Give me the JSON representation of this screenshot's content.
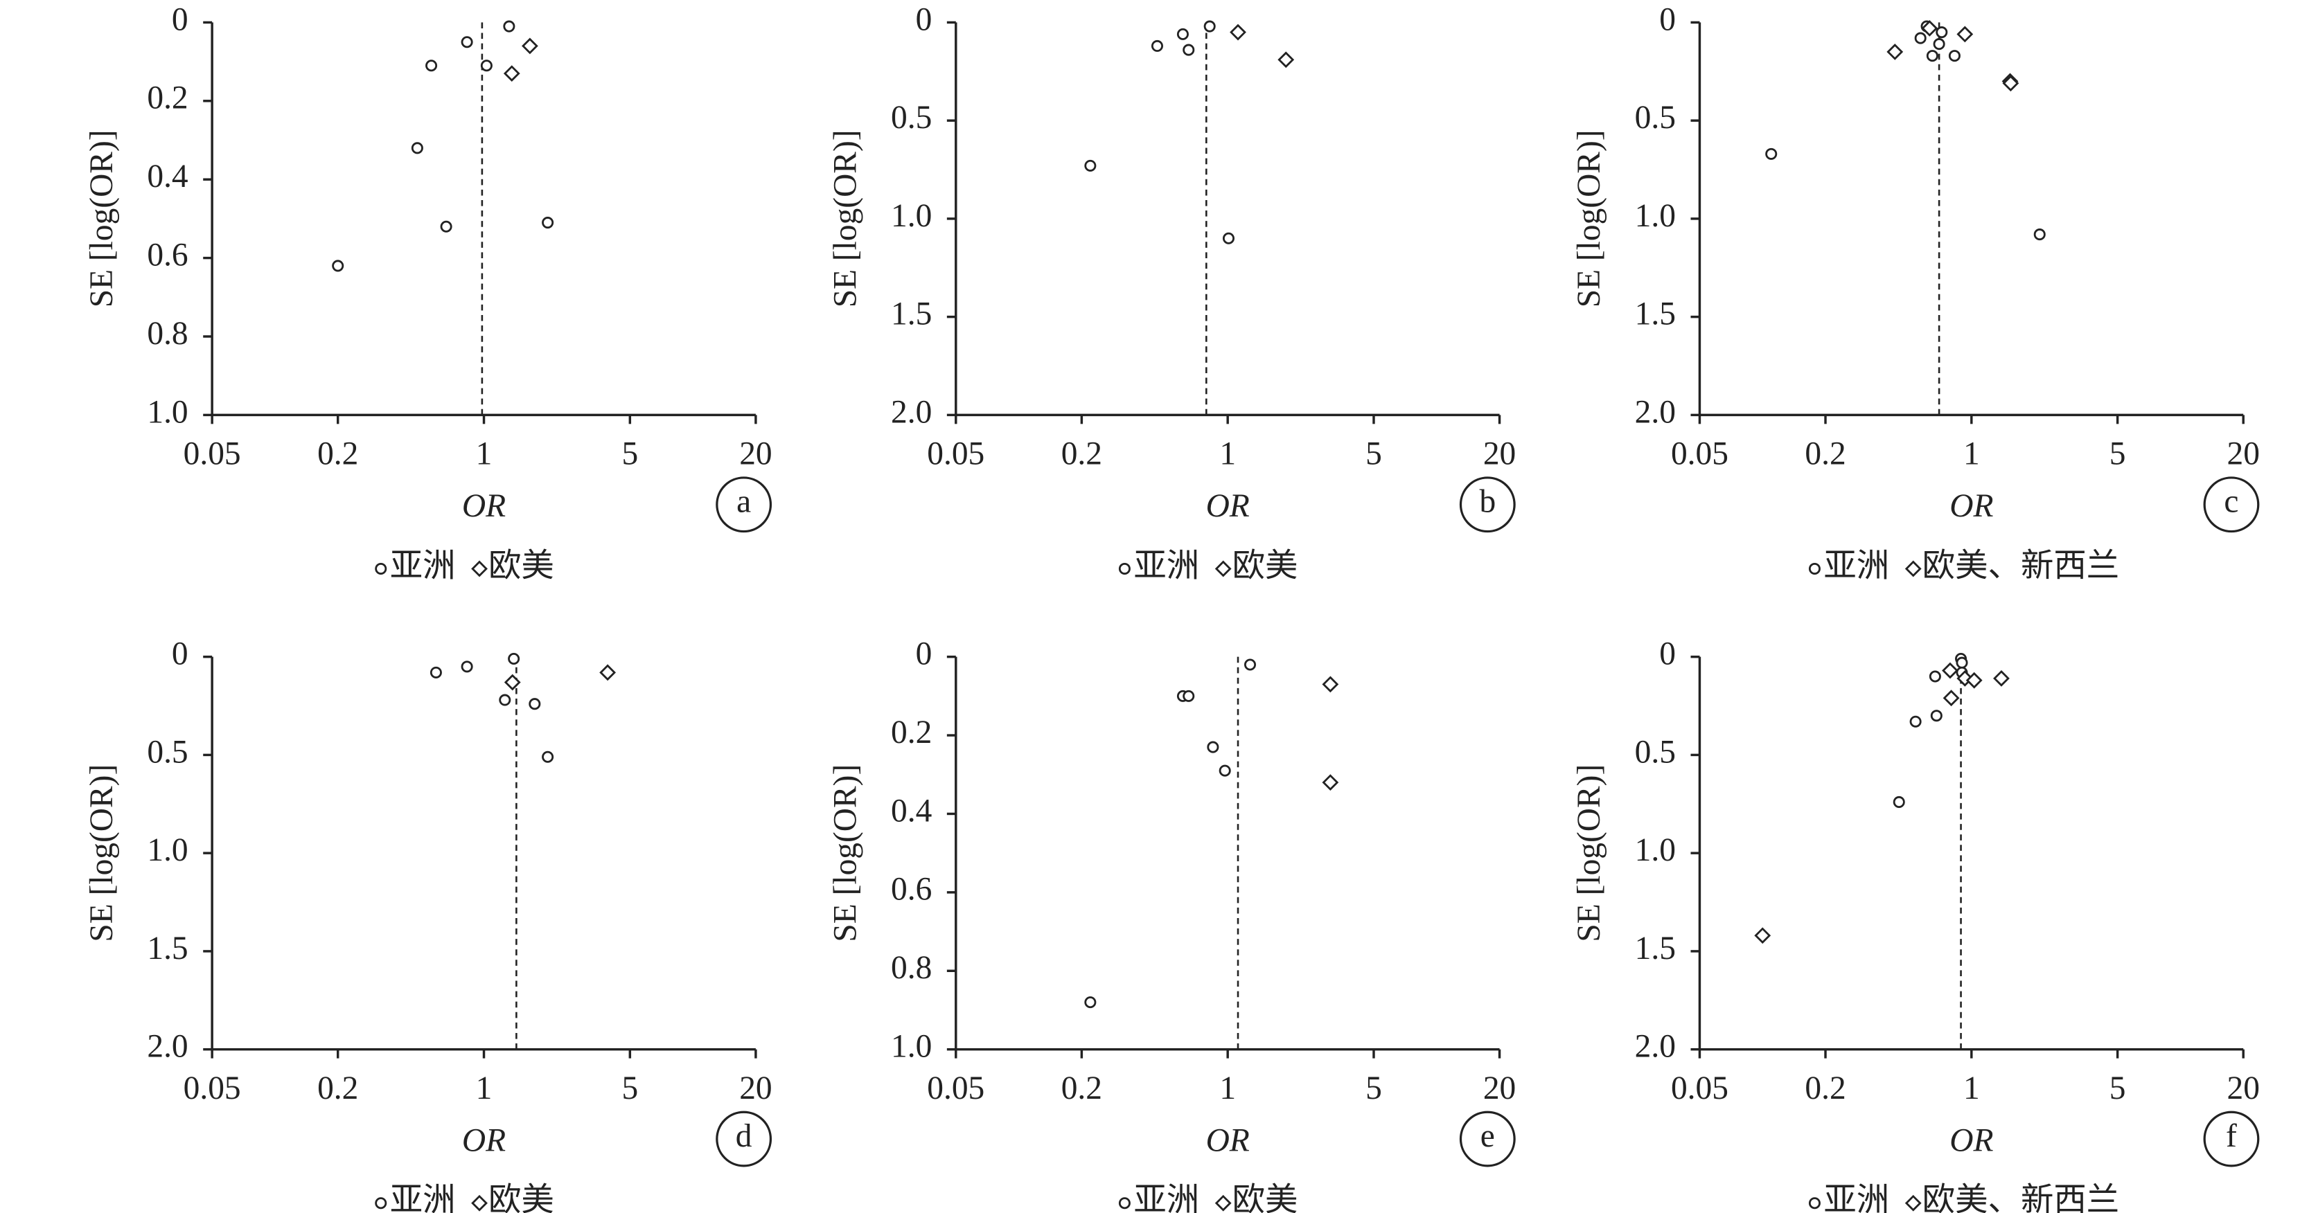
{
  "chart_data": [
    {
      "type": "scatter",
      "panel_label": "a",
      "x_label": "OR",
      "y_label": "SE [log(OR)]",
      "x_scale": "log",
      "y_reversed": true,
      "xlim": [
        0.05,
        20
      ],
      "xticks": [
        0.05,
        0.2,
        1,
        5,
        20
      ],
      "ylim": [
        0,
        1
      ],
      "yticks": [
        0,
        0.2,
        0.4,
        0.6,
        0.8,
        {
          "value": 1,
          "label": "1.0"
        }
      ],
      "summary_or": 0.98,
      "color": "#222222",
      "series": [
        {
          "name": "亚洲",
          "marker": "circle",
          "x": [
            0.83,
            1.32,
            0.56,
            1.03,
            0.48,
            0.66,
            2.02,
            0.2
          ],
          "values": [
            0.05,
            0.01,
            0.11,
            0.11,
            0.32,
            0.52,
            0.51,
            0.62
          ]
        },
        {
          "name": "欧美",
          "marker": "diamond",
          "x": [
            1.66,
            1.36
          ],
          "values": [
            0.06,
            0.13
          ]
        }
      ]
    },
    {
      "type": "scatter",
      "panel_label": "b",
      "x_label": "OR",
      "y_label": "SE [log(OR)]",
      "x_scale": "log",
      "y_reversed": true,
      "xlim": [
        0.05,
        20
      ],
      "xticks": [
        0.05,
        0.2,
        1,
        5,
        20
      ],
      "ylim": [
        0,
        2
      ],
      "yticks": [
        0,
        0.5,
        {
          "value": 1,
          "label": "1.0"
        },
        1.5,
        {
          "value": 2,
          "label": "2.0"
        }
      ],
      "summary_or": 0.79,
      "color": "#222222",
      "series": [
        {
          "name": "亚洲",
          "marker": "circle",
          "x": [
            0.82,
            0.61,
            0.65,
            0.46,
            0.22,
            1.01
          ],
          "values": [
            0.02,
            0.06,
            0.14,
            0.12,
            0.73,
            1.1
          ]
        },
        {
          "name": "欧美",
          "marker": "diamond",
          "x": [
            1.12,
            1.9
          ],
          "values": [
            0.05,
            0.19
          ]
        }
      ]
    },
    {
      "type": "scatter",
      "panel_label": "c",
      "x_label": "OR",
      "y_label": "SE [log(OR)]",
      "x_scale": "log",
      "y_reversed": true,
      "xlim": [
        0.05,
        20
      ],
      "xticks": [
        0.05,
        0.2,
        1,
        5,
        20
      ],
      "ylim": [
        0,
        2
      ],
      "yticks": [
        0,
        0.5,
        {
          "value": 1,
          "label": "1.0"
        },
        1.5,
        {
          "value": 2,
          "label": "2.0"
        }
      ],
      "summary_or": 0.7,
      "color": "#222222",
      "series": [
        {
          "name": "亚洲",
          "marker": "circle",
          "x": [
            0.61,
            0.57,
            0.72,
            0.7,
            0.65,
            0.83,
            0.11,
            2.12
          ],
          "values": [
            0.02,
            0.08,
            0.05,
            0.11,
            0.17,
            0.17,
            0.67,
            1.08
          ]
        },
        {
          "name": "欧美、新西兰",
          "marker": "diamond",
          "x": [
            0.63,
            0.93,
            0.43,
            1.53,
            1.54
          ],
          "values": [
            0.03,
            0.06,
            0.15,
            0.3,
            0.31
          ]
        }
      ]
    },
    {
      "type": "scatter",
      "panel_label": "d",
      "x_label": "OR",
      "y_label": "SE [log(OR)]",
      "x_scale": "log",
      "y_reversed": true,
      "xlim": [
        0.05,
        20
      ],
      "xticks": [
        0.05,
        0.2,
        1,
        5,
        20
      ],
      "ylim": [
        0,
        2
      ],
      "yticks": [
        0,
        0.5,
        {
          "value": 1,
          "label": "1.0"
        },
        1.5,
        {
          "value": 2,
          "label": "2.0"
        }
      ],
      "summary_or": 1.43,
      "color": "#222222",
      "series": [
        {
          "name": "亚洲",
          "marker": "circle",
          "x": [
            0.59,
            0.83,
            1.39,
            1.26,
            1.75,
            2.02
          ],
          "values": [
            0.08,
            0.05,
            0.01,
            0.22,
            0.24,
            0.51
          ]
        },
        {
          "name": "欧美",
          "marker": "diamond",
          "x": [
            1.37,
            3.91
          ],
          "values": [
            0.13,
            0.08
          ]
        }
      ]
    },
    {
      "type": "scatter",
      "panel_label": "e",
      "x_label": "OR",
      "y_label": "SE [log(OR)]",
      "x_scale": "log",
      "y_reversed": true,
      "xlim": [
        0.05,
        20
      ],
      "xticks": [
        0.05,
        0.2,
        1,
        5,
        20
      ],
      "ylim": [
        0,
        1
      ],
      "yticks": [
        0,
        0.2,
        0.4,
        0.6,
        0.8,
        {
          "value": 1,
          "label": "1.0"
        }
      ],
      "summary_or": 1.12,
      "color": "#222222",
      "series": [
        {
          "name": "亚洲",
          "marker": "circle",
          "x": [
            1.28,
            0.61,
            0.65,
            0.85,
            0.97,
            0.22
          ],
          "values": [
            0.02,
            0.1,
            0.1,
            0.23,
            0.29,
            0.88
          ]
        },
        {
          "name": "欧美",
          "marker": "diamond",
          "x": [
            3.1,
            3.1
          ],
          "values": [
            0.07,
            0.32
          ]
        }
      ]
    },
    {
      "type": "scatter",
      "panel_label": "f",
      "x_label": "OR",
      "y_label": "SE [log(OR)]",
      "x_scale": "log",
      "y_reversed": true,
      "xlim": [
        0.05,
        20
      ],
      "xticks": [
        0.05,
        0.2,
        1,
        5,
        20
      ],
      "ylim": [
        0,
        2
      ],
      "yticks": [
        0,
        0.5,
        {
          "value": 1,
          "label": "1.0"
        },
        1.5,
        {
          "value": 2,
          "label": "2.0"
        }
      ],
      "summary_or": 0.89,
      "color": "#222222",
      "series": [
        {
          "name": "亚洲",
          "marker": "circle",
          "x": [
            0.89,
            0.9,
            0.9,
            0.67,
            0.54,
            0.68,
            0.45
          ],
          "values": [
            0.01,
            0.03,
            0.08,
            0.1,
            0.33,
            0.3,
            0.74
          ]
        },
        {
          "name": "欧美、新西兰",
          "marker": "diamond",
          "x": [
            0.79,
            0.93,
            1.03,
            1.39,
            0.8,
            0.1
          ],
          "values": [
            0.07,
            0.11,
            0.12,
            0.11,
            0.21,
            1.42
          ]
        }
      ]
    }
  ]
}
